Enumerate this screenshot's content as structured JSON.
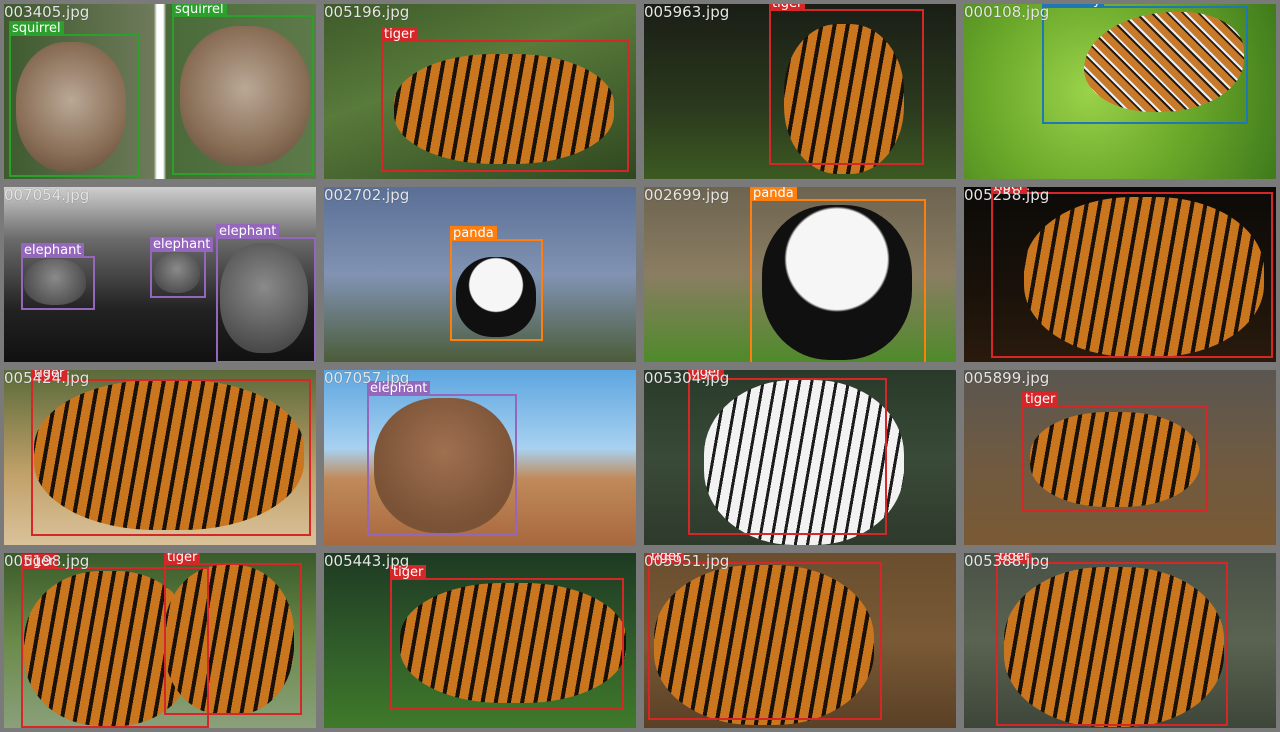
{
  "mosaic": {
    "tiles": [
      {
        "file": "003405.jpg",
        "labels": [
          "squirrel",
          "squirrel"
        ]
      },
      {
        "file": "005196.jpg",
        "labels": [
          "tiger"
        ]
      },
      {
        "file": "005963.jpg",
        "labels": [
          "tiger"
        ]
      },
      {
        "file": "000108.jpg",
        "labels": [
          "butterfly"
        ]
      },
      {
        "file": "007054.jpg",
        "labels": [
          "elephant",
          "elephant",
          "elephant"
        ]
      },
      {
        "file": "002702.jpg",
        "labels": [
          "panda"
        ]
      },
      {
        "file": "002699.jpg",
        "labels": [
          "panda"
        ]
      },
      {
        "file": "005258.jpg",
        "labels": [
          "tiger"
        ]
      },
      {
        "file": "005424.jpg",
        "labels": [
          "tiger"
        ]
      },
      {
        "file": "007057.jpg",
        "labels": [
          "elephant"
        ]
      },
      {
        "file": "005304.jpg",
        "labels": [
          "tiger"
        ]
      },
      {
        "file": "005899.jpg",
        "labels": [
          "tiger"
        ]
      },
      {
        "file": "005198.jpg",
        "labels": [
          "tiger",
          "tiger"
        ]
      },
      {
        "file": "005443.jpg",
        "labels": [
          "tiger"
        ]
      },
      {
        "file": "005951.jpg",
        "labels": [
          "tiger"
        ]
      },
      {
        "file": "005388.jpg",
        "labels": [
          "tiger"
        ]
      }
    ],
    "colors": {
      "tiger": "#d62728",
      "squirrel": "#2ca02c",
      "butterfly": "#1f77b4",
      "elephant": "#9467bd",
      "panda": "#ff7f0e"
    }
  }
}
